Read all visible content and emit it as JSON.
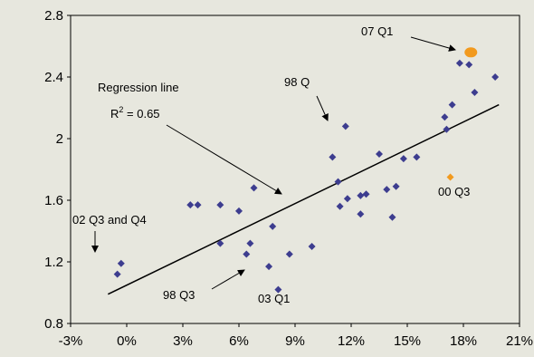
{
  "chart_data": {
    "type": "scatter",
    "title": "",
    "xlabel": "",
    "ylabel": "",
    "xlim": [
      -3,
      21
    ],
    "ylim": [
      0.8,
      2.8
    ],
    "x_ticks": [
      -3,
      0,
      3,
      6,
      9,
      12,
      15,
      18,
      21
    ],
    "x_tick_labels": [
      "-3%",
      "0%",
      "3%",
      "6%",
      "9%",
      "12%",
      "15%",
      "18%",
      "21%"
    ],
    "y_ticks": [
      0.8,
      1.2,
      1.6,
      2.0,
      2.4,
      2.8
    ],
    "y_tick_labels": [
      "0.8",
      "1.2",
      "1.6",
      "2",
      "2.4",
      "2.8"
    ],
    "grid": false,
    "legend": "none",
    "colors": {
      "points": "#3D3D8F",
      "highlight": "#F29A1E",
      "line": "#000000",
      "background": "#E7E7DE"
    },
    "series": [
      {
        "marker": "diamond",
        "color": "#3D3D8F",
        "points": [
          [
            -0.5,
            1.12
          ],
          [
            -0.3,
            1.19
          ],
          [
            3.4,
            1.57
          ],
          [
            3.8,
            1.57
          ],
          [
            5.0,
            1.57
          ],
          [
            5.0,
            1.32
          ],
          [
            6.0,
            1.53
          ],
          [
            6.4,
            1.25
          ],
          [
            6.6,
            1.32
          ],
          [
            6.8,
            1.68
          ],
          [
            7.6,
            1.17
          ],
          [
            7.8,
            1.43
          ],
          [
            8.1,
            1.02
          ],
          [
            8.7,
            1.25
          ],
          [
            9.9,
            1.3
          ],
          [
            11.0,
            1.88
          ],
          [
            11.3,
            1.72
          ],
          [
            11.4,
            1.56
          ],
          [
            11.7,
            2.08
          ],
          [
            11.8,
            1.61
          ],
          [
            12.5,
            1.51
          ],
          [
            12.5,
            1.63
          ],
          [
            12.8,
            1.64
          ],
          [
            13.5,
            1.9
          ],
          [
            13.9,
            1.67
          ],
          [
            14.2,
            1.49
          ],
          [
            14.4,
            1.69
          ],
          [
            14.8,
            1.87
          ],
          [
            15.5,
            1.88
          ],
          [
            17.0,
            2.14
          ],
          [
            17.1,
            2.06
          ],
          [
            17.4,
            2.22
          ],
          [
            17.8,
            2.49
          ],
          [
            18.3,
            2.48
          ],
          [
            18.6,
            2.3
          ],
          [
            19.7,
            2.4
          ]
        ]
      },
      {
        "marker": "diamond",
        "color": "#F29A1E",
        "points": [
          [
            17.3,
            1.75
          ]
        ]
      },
      {
        "marker": "ellipse",
        "color": "#F29A1E",
        "points": [
          [
            18.4,
            2.56
          ]
        ]
      }
    ],
    "regression_line": {
      "x": [
        -1.0,
        19.9
      ],
      "y": [
        0.99,
        2.22
      ]
    },
    "annotations": [
      {
        "id": "regression",
        "text": "Regression line",
        "r2_prefix": "R",
        "r2_exp": "2",
        "r2_suffix": " = 0.65"
      },
      {
        "id": "q98",
        "text": "98 Q"
      },
      {
        "id": "q07",
        "text": "07 Q1"
      },
      {
        "id": "q00",
        "text": "00 Q3"
      },
      {
        "id": "q02",
        "text": "02 Q3 and Q4"
      },
      {
        "id": "q98q3",
        "text": "98 Q3"
      },
      {
        "id": "q03",
        "text": "03 Q1"
      }
    ]
  }
}
